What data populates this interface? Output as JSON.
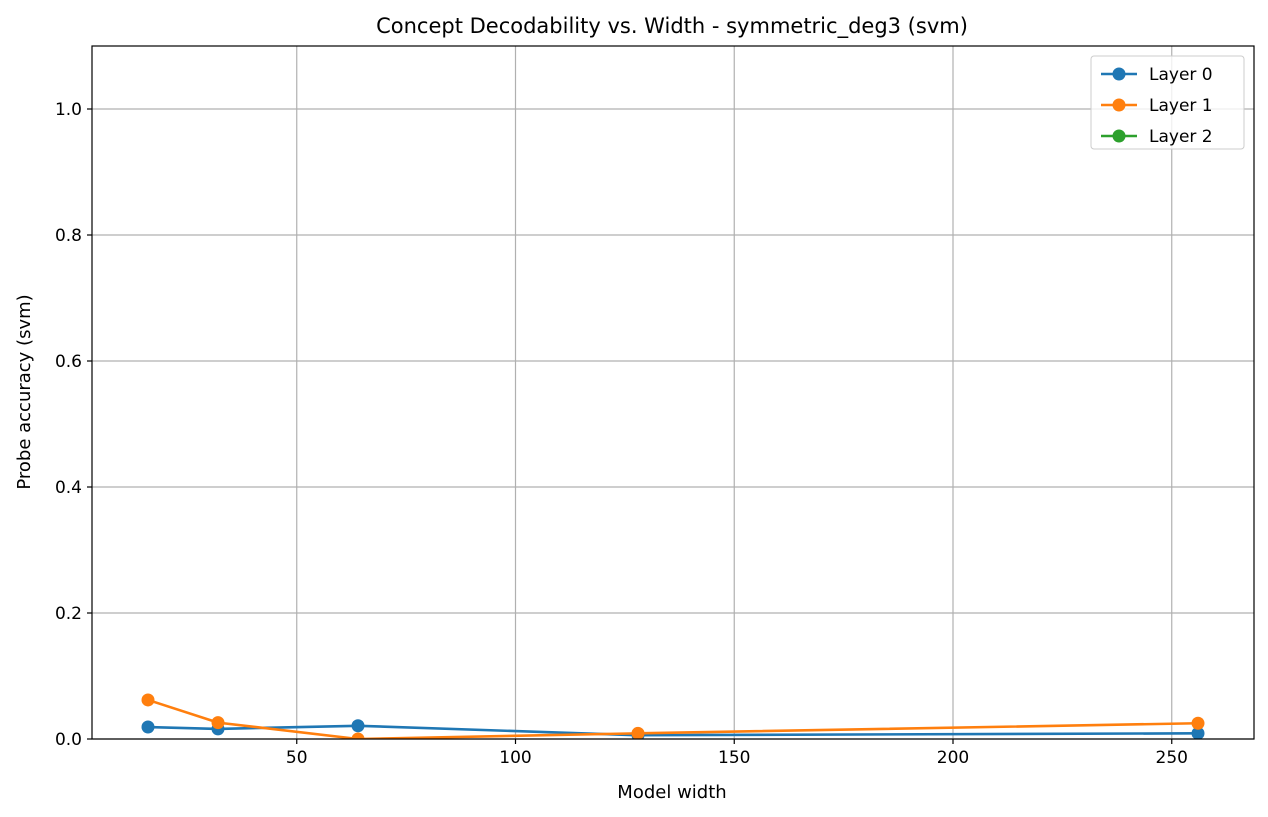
{
  "chart_data": {
    "type": "line",
    "title": "Concept Decodability vs. Width - symmetric_deg3 (svm)",
    "xlabel": "Model width",
    "ylabel": "Probe accuracy (svm)",
    "xlim": [
      3.2,
      268.8
    ],
    "ylim": [
      0,
      1.1
    ],
    "xticks": [
      50,
      100,
      150,
      200,
      250
    ],
    "yticks": [
      0.0,
      0.2,
      0.4,
      0.6,
      0.8,
      1.0
    ],
    "grid": true,
    "legend_position": "upper-right",
    "series": [
      {
        "name": "Layer 0",
        "color": "#1f77b4",
        "x": [
          16,
          32,
          64,
          128,
          256
        ],
        "y": [
          0.019,
          0.016,
          0.021,
          0.006,
          0.009
        ]
      },
      {
        "name": "Layer 1",
        "color": "#ff7f0e",
        "x": [
          16,
          32,
          64,
          128,
          256
        ],
        "y": [
          0.062,
          0.026,
          0.0,
          0.009,
          0.025
        ]
      },
      {
        "name": "Layer 2",
        "color": "#2ca02c",
        "x": [],
        "y": []
      }
    ]
  }
}
